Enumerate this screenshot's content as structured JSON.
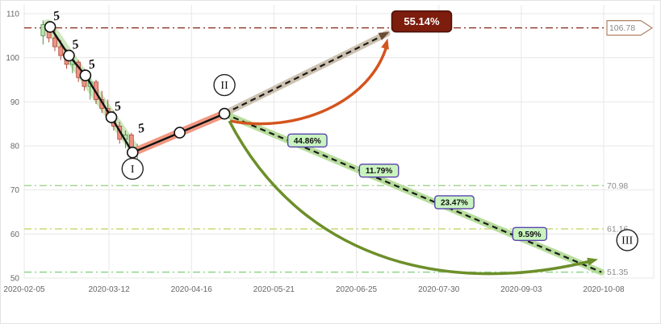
{
  "chart_data": {
    "type": "candlestick",
    "x_ticks": [
      "2020-02-05",
      "2020-03-12",
      "2020-04-16",
      "2020-05-21",
      "2020-06-25",
      "2020-07-30",
      "2020-09-03",
      "2020-10-08"
    ],
    "x_tick_days": [
      0,
      36,
      71,
      106,
      141,
      176,
      211,
      246
    ],
    "y_ticks": [
      50,
      60,
      70,
      80,
      90,
      100,
      110
    ],
    "ylim": [
      47,
      112
    ],
    "grid": true,
    "colors": {
      "grid": "#e7e7e7",
      "trend": "#111111",
      "dashed": "#1a1a1a",
      "up_candle": "#4e8f4e",
      "up_fill": "#b9e0ad",
      "down_candle": "#b04a3a",
      "down_fill": "#eb9485"
    },
    "candles": [
      {
        "d": 8,
        "o": 105,
        "h": 108.5,
        "l": 103,
        "c": 107.5
      },
      {
        "d": 10.5,
        "o": 107,
        "h": 108,
        "l": 103.5,
        "c": 104.5
      },
      {
        "d": 13,
        "o": 104.5,
        "h": 106.5,
        "l": 101.5,
        "c": 102.5
      },
      {
        "d": 15.5,
        "o": 102.5,
        "h": 104,
        "l": 99.5,
        "c": 100.5
      },
      {
        "d": 18,
        "o": 100.5,
        "h": 102,
        "l": 97.5,
        "c": 98.5
      },
      {
        "d": 20.5,
        "o": 98.5,
        "h": 100.5,
        "l": 96.5,
        "c": 99.5
      },
      {
        "d": 23,
        "o": 99,
        "h": 99.5,
        "l": 94.5,
        "c": 95.5
      },
      {
        "d": 25.5,
        "o": 95.5,
        "h": 97.5,
        "l": 92.5,
        "c": 93.5
      },
      {
        "d": 28,
        "o": 93.5,
        "h": 95.5,
        "l": 90.5,
        "c": 94.5
      },
      {
        "d": 30.5,
        "o": 94.5,
        "h": 95,
        "l": 89.5,
        "c": 90.5
      },
      {
        "d": 33,
        "o": 90.5,
        "h": 92.5,
        "l": 87.5,
        "c": 88.5
      },
      {
        "d": 35.5,
        "o": 88.5,
        "h": 90.5,
        "l": 85.5,
        "c": 86.5
      },
      {
        "d": 38,
        "o": 86.5,
        "h": 88,
        "l": 83.5,
        "c": 84.5
      },
      {
        "d": 40.5,
        "o": 84.5,
        "h": 85.5,
        "l": 80.5,
        "c": 81.5
      },
      {
        "d": 43,
        "o": 81.5,
        "h": 83.5,
        "l": 79.5,
        "c": 82.5
      },
      {
        "d": 45.5,
        "o": 82.5,
        "h": 83,
        "l": 77.5,
        "c": 78.5
      },
      {
        "d": 48,
        "o": 78.5,
        "h": 80.5,
        "l": 77,
        "c": 79.5
      }
    ],
    "decline_band": {
      "x1d": 10,
      "v1": 107.5,
      "x2d": 47,
      "v2": 79,
      "color": "#9ed17e"
    },
    "pivots": [
      {
        "d": 11,
        "v": 107
      },
      {
        "d": 19,
        "v": 100.5
      },
      {
        "d": 26,
        "v": 96
      },
      {
        "d": 37,
        "v": 86.5
      },
      {
        "d": 46,
        "v": 78.5
      },
      {
        "d": 66,
        "v": 83
      },
      {
        "d": 85,
        "v": 87.3
      }
    ],
    "wave_markers": {
      "glyph": "5",
      "points": [
        {
          "d": 11,
          "v": 107
        },
        {
          "d": 19,
          "v": 100.5
        },
        {
          "d": 26,
          "v": 96
        },
        {
          "d": 37,
          "v": 86.5
        },
        {
          "d": 47,
          "v": 81.5
        }
      ]
    },
    "phases": [
      {
        "label": "I",
        "d": 46,
        "v": 74.8
      },
      {
        "label": "II",
        "d": 85,
        "v": 93.8
      },
      {
        "label": "III",
        "d": 256,
        "v": 58.6
      }
    ],
    "segments": {
      "impulse": {
        "x1d": 46,
        "v1": 78.5,
        "x2d": 85,
        "v2": 87.3,
        "band": "#f0937c"
      },
      "up": {
        "x1d": 85,
        "v1": 87.3,
        "x2d": 154,
        "v2": 105.5,
        "band": "#cdc2b0",
        "label": "55.14%",
        "label_bg": "#7d1d0e",
        "label_border": "#4a0f06",
        "label_text_color": "#ffffff"
      },
      "down": {
        "x1d": 85,
        "v1": 87.3,
        "x2d": 245,
        "v2": 51.35,
        "band": "#b0da92",
        "pill_bg": "#c9f4c0",
        "pill_border": "#5b44b0",
        "pills": [
          {
            "label": "44.86%",
            "t": 0.22
          },
          {
            "label": "11.79%",
            "t": 0.41
          },
          {
            "label": "23.47%",
            "t": 0.61
          },
          {
            "label": "9.59%",
            "t": 0.81
          }
        ]
      }
    },
    "curves": {
      "up_color": "#d4541e",
      "down_color": "#6d8f2a"
    },
    "levels": [
      {
        "value": 106.78,
        "label": "106.78",
        "color": "#8b3020",
        "style": "arrow"
      },
      {
        "value": 70.98,
        "label": "70.98",
        "color": "#9fd48a",
        "style": "plain"
      },
      {
        "value": 61.16,
        "label": "61.16",
        "color": "#c6dc74",
        "style": "plain"
      },
      {
        "value": 51.35,
        "label": "51.35",
        "color": "#8fd487",
        "style": "plain"
      }
    ]
  }
}
